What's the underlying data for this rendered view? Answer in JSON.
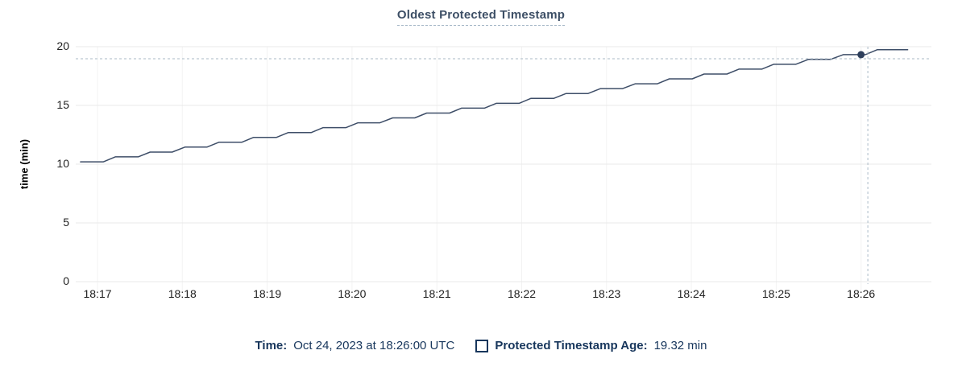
{
  "header": {
    "title": "Oldest Protected Timestamp"
  },
  "y_axis": {
    "label": "time (min)",
    "ticks": [
      "20",
      "15",
      "10",
      "5",
      "0"
    ]
  },
  "x_axis": {
    "ticks": [
      "18:17",
      "18:18",
      "18:19",
      "18:20",
      "18:21",
      "18:22",
      "18:23",
      "18:24",
      "18:25",
      "18:26"
    ]
  },
  "tooltip": {
    "time_label": "Time:",
    "time_value": "Oct 24, 2023 at 18:26:00 UTC",
    "series_label": "Protected Timestamp Age:",
    "series_value": "19.32 min"
  },
  "colors": {
    "navy": "#17365c",
    "title": "#3d4f66",
    "line": "#3e4e68",
    "dot": "#2e3f5c",
    "gridline": "#e9e9e9",
    "minor_gridline": "#f3f3f3",
    "crosshair": "#a9bac6",
    "axis_text": "#222222"
  },
  "chart_data": {
    "type": "line",
    "title": "Oldest Protected Timestamp",
    "xlabel": "",
    "ylabel": "time (min)",
    "ylim": [
      0,
      20
    ],
    "y_tick_values": [
      0,
      5,
      10,
      15,
      20
    ],
    "x_tick_labels": [
      "18:17",
      "18:18",
      "18:19",
      "18:20",
      "18:21",
      "18:22",
      "18:23",
      "18:24",
      "18:25",
      "18:26"
    ],
    "x_unit": "minutes after 18:17 UTC, Oct 24 2023",
    "grid": true,
    "legend_position": "bottom",
    "series": [
      {
        "name": "Protected Timestamp Age",
        "unit": "min",
        "points": [
          [
            -0.2,
            10.2
          ],
          [
            0.07,
            10.2
          ],
          [
            0.21,
            10.62
          ],
          [
            0.48,
            10.62
          ],
          [
            0.62,
            11.03
          ],
          [
            0.88,
            11.03
          ],
          [
            1.03,
            11.45
          ],
          [
            1.29,
            11.45
          ],
          [
            1.43,
            11.86
          ],
          [
            1.7,
            11.86
          ],
          [
            1.84,
            12.28
          ],
          [
            2.11,
            12.28
          ],
          [
            2.25,
            12.69
          ],
          [
            2.52,
            12.69
          ],
          [
            2.66,
            13.11
          ],
          [
            2.93,
            13.11
          ],
          [
            3.07,
            13.52
          ],
          [
            3.33,
            13.52
          ],
          [
            3.48,
            13.94
          ],
          [
            3.74,
            13.94
          ],
          [
            3.88,
            14.35
          ],
          [
            4.15,
            14.35
          ],
          [
            4.29,
            14.77
          ],
          [
            4.56,
            14.77
          ],
          [
            4.7,
            15.18
          ],
          [
            4.97,
            15.18
          ],
          [
            5.11,
            15.6
          ],
          [
            5.38,
            15.6
          ],
          [
            5.52,
            16.01
          ],
          [
            5.78,
            16.01
          ],
          [
            5.93,
            16.43
          ],
          [
            6.19,
            16.43
          ],
          [
            6.34,
            16.84
          ],
          [
            6.6,
            16.84
          ],
          [
            6.74,
            17.26
          ],
          [
            7.01,
            17.26
          ],
          [
            7.15,
            17.67
          ],
          [
            7.42,
            17.67
          ],
          [
            7.56,
            18.09
          ],
          [
            7.83,
            18.09
          ],
          [
            7.97,
            18.5
          ],
          [
            8.23,
            18.5
          ],
          [
            8.38,
            18.92
          ],
          [
            8.64,
            18.92
          ],
          [
            8.79,
            19.32
          ],
          [
            9.05,
            19.32
          ],
          [
            9.19,
            19.74
          ],
          [
            9.55,
            19.74
          ]
        ]
      }
    ],
    "highlight": {
      "t_min": 9.0,
      "value": 19.32,
      "time": "18:26:00",
      "label": "19.32 min"
    },
    "crosshair": {
      "t_min": 9.08,
      "value": 18.97
    }
  }
}
